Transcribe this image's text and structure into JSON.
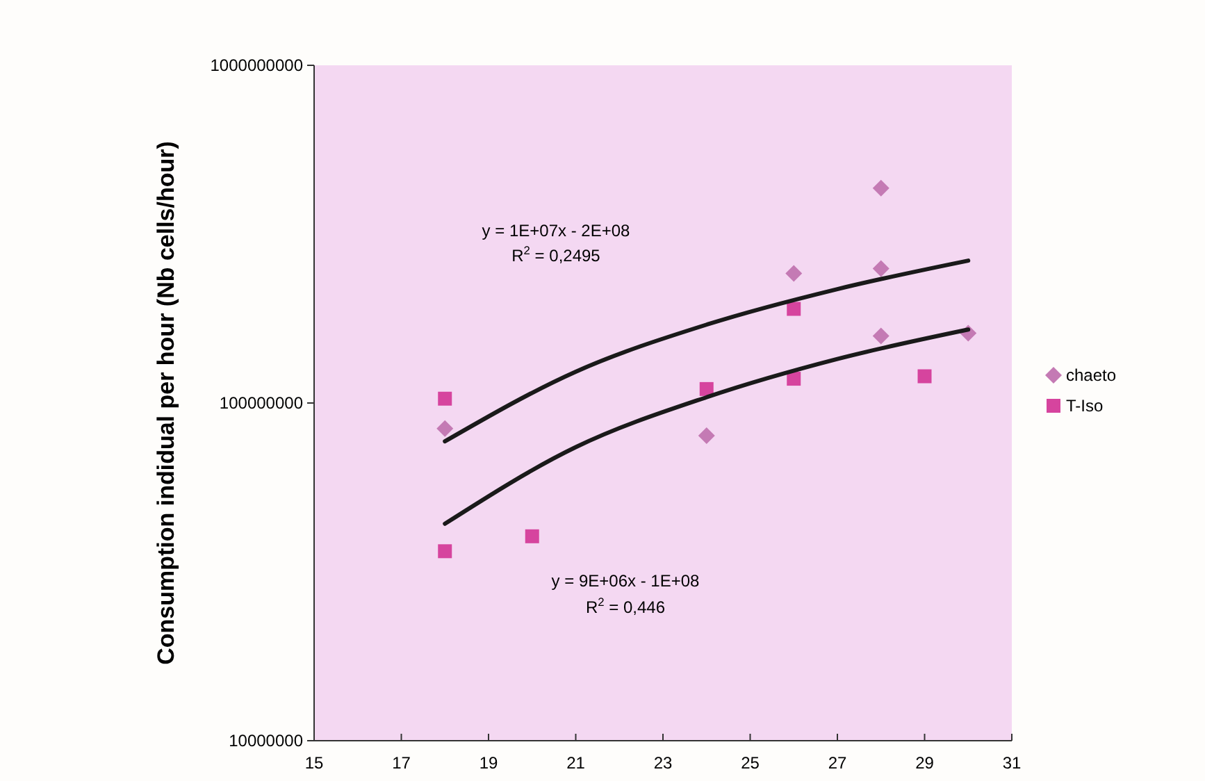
{
  "chart_data": {
    "type": "scatter",
    "ylabel": "Consumption indidual per hour (Nb cells/hour)",
    "log": "y",
    "xlim": [
      15,
      31
    ],
    "xticks": [
      15,
      17,
      19,
      21,
      23,
      25,
      27,
      29,
      31
    ],
    "ylim": [
      10000000,
      1000000000
    ],
    "yticks": [
      10000000,
      100000000,
      1000000000
    ],
    "legend": "right",
    "grid": false,
    "series": [
      {
        "name": "chaeto",
        "color": "#c47ab4",
        "marker": "diamond",
        "x": [
          18,
          24,
          26,
          28,
          28,
          28,
          30
        ],
        "values": [
          84000000,
          80000000,
          242000000,
          433000000,
          250000000,
          158000000,
          161000000
        ]
      },
      {
        "name": "T-Iso",
        "color": "#d6449e",
        "marker": "square",
        "x": [
          18,
          18,
          20,
          24,
          26,
          26,
          29
        ],
        "values": [
          103000000,
          36400000,
          40300000,
          110000000,
          190000000,
          118000000,
          120000000
        ]
      },
      {
        "type": "line",
        "color": "#1a1a1a",
        "marker": "none",
        "line_style": "solid",
        "x": [
          18,
          21,
          24,
          27,
          30
        ],
        "values": [
          77000000,
          123800000,
          170600000,
          217400000,
          264000000
        ]
      },
      {
        "type": "line",
        "color": "#1a1a1a",
        "marker": "none",
        "line_style": "solid",
        "x": [
          18,
          21,
          24,
          27,
          30
        ],
        "values": [
          43900000,
          74000000,
          104000000,
          135000000,
          165000000
        ]
      }
    ],
    "annotations": [
      "y = 1E+07x - 2E+08",
      "R$^{2}$ = 0,2495",
      "y = 9E+06x - 1E+08",
      "R$^{2}$ = 0,446"
    ]
  }
}
